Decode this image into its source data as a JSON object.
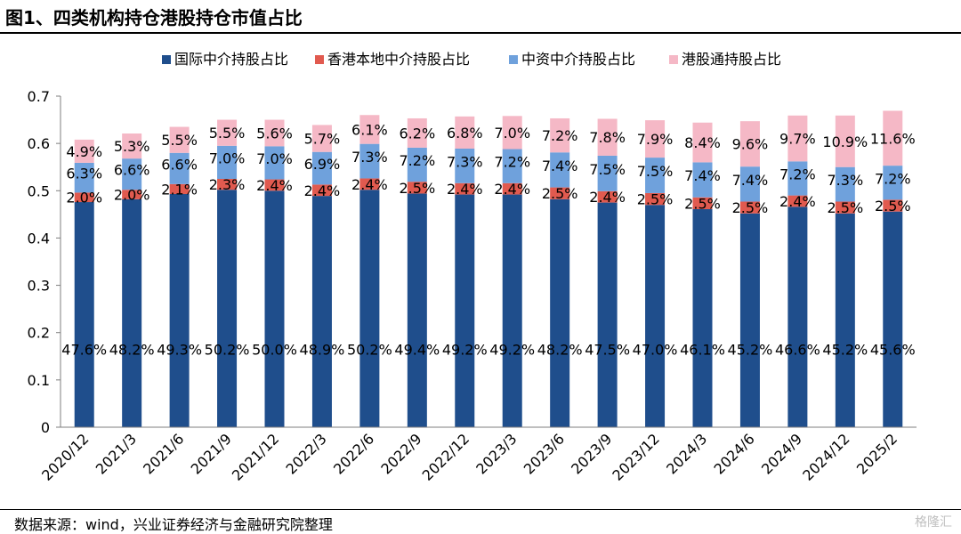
{
  "title": "图1、四类机构持仓港股持仓市值占比",
  "source": "数据来源：wind，兴业证券经济与金融研究院整理",
  "watermark": "格隆汇",
  "chart_data": {
    "type": "bar",
    "stacked": true,
    "title": "",
    "xlabel": "",
    "ylabel": "",
    "ylim": [
      0,
      0.7
    ],
    "yticks": [
      "0",
      "0.1",
      "0.2",
      "0.3",
      "0.4",
      "0.5",
      "0.6",
      "0.7"
    ],
    "legend_position": "top",
    "categories": [
      "2020/12",
      "2021/3",
      "2021/6",
      "2021/9",
      "2021/12",
      "2022/3",
      "2022/6",
      "2022/9",
      "2022/12",
      "2023/3",
      "2023/6",
      "2023/9",
      "2023/12",
      "2024/3",
      "2024/6",
      "2024/9",
      "2024/12",
      "2025/2"
    ],
    "series": [
      {
        "name": "国际中介持股占比",
        "color": "#1f4e8c",
        "values": [
          0.476,
          0.482,
          0.493,
          0.502,
          0.5,
          0.489,
          0.502,
          0.494,
          0.492,
          0.492,
          0.482,
          0.475,
          0.47,
          0.461,
          0.452,
          0.466,
          0.452,
          0.456
        ],
        "labels": [
          "47.6%",
          "48.2%",
          "49.3%",
          "50.2%",
          "50.0%",
          "48.9%",
          "50.2%",
          "49.4%",
          "49.2%",
          "49.2%",
          "48.2%",
          "47.5%",
          "47.0%",
          "46.1%",
          "45.2%",
          "46.6%",
          "45.2%",
          "45.6%"
        ]
      },
      {
        "name": "香港本地中介持股占比",
        "color": "#e15a4f",
        "values": [
          0.02,
          0.02,
          0.021,
          0.023,
          0.024,
          0.024,
          0.024,
          0.025,
          0.024,
          0.024,
          0.025,
          0.024,
          0.025,
          0.025,
          0.025,
          0.024,
          0.025,
          0.025
        ],
        "labels": [
          "2.0%",
          "2.0%",
          "2.1%",
          "2.3%",
          "2.4%",
          "2.4%",
          "2.4%",
          "2.5%",
          "2.4%",
          "2.4%",
          "2.5%",
          "2.4%",
          "2.5%",
          "2.5%",
          "2.5%",
          "2.4%",
          "2.5%",
          "2.5%"
        ]
      },
      {
        "name": "中资中介持股占比",
        "color": "#6fa1dc",
        "values": [
          0.063,
          0.066,
          0.066,
          0.07,
          0.07,
          0.069,
          0.073,
          0.072,
          0.073,
          0.072,
          0.074,
          0.075,
          0.075,
          0.074,
          0.074,
          0.072,
          0.073,
          0.072
        ],
        "labels": [
          "6.3%",
          "6.6%",
          "6.6%",
          "7.0%",
          "7.0%",
          "6.9%",
          "7.3%",
          "7.2%",
          "7.3%",
          "7.2%",
          "7.4%",
          "7.5%",
          "7.5%",
          "7.4%",
          "7.4%",
          "7.2%",
          "7.3%",
          "7.2%"
        ]
      },
      {
        "name": "港股通持股占比",
        "color": "#f5b8c6",
        "values": [
          0.049,
          0.053,
          0.055,
          0.055,
          0.056,
          0.057,
          0.061,
          0.062,
          0.068,
          0.07,
          0.072,
          0.078,
          0.079,
          0.084,
          0.096,
          0.097,
          0.109,
          0.116
        ],
        "labels": [
          "4.9%",
          "5.3%",
          "5.5%",
          "5.5%",
          "5.6%",
          "5.7%",
          "6.1%",
          "6.2%",
          "6.8%",
          "7.0%",
          "7.2%",
          "7.8%",
          "7.9%",
          "8.4%",
          "9.6%",
          "9.7%",
          "10.9%",
          "11.6%"
        ]
      }
    ]
  }
}
